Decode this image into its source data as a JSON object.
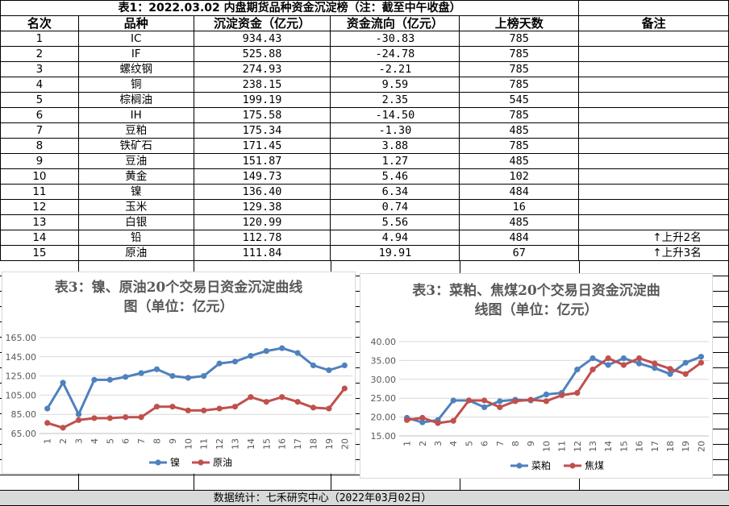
{
  "table": {
    "title": "表1：2022.03.02 内盘期货品种资金沉淀榜（注：截至中午收盘）",
    "headers": [
      "名次",
      "品种",
      "沉淀资金（亿元）",
      "资金流向（亿元）",
      "上榜天数",
      "备注"
    ],
    "rows": [
      {
        "rank": "1",
        "name": "IC",
        "capital": "934.43",
        "flow": "-30.83",
        "days": "785",
        "note": ""
      },
      {
        "rank": "2",
        "name": "IF",
        "capital": "525.88",
        "flow": "-24.78",
        "days": "785",
        "note": ""
      },
      {
        "rank": "3",
        "name": "螺纹钢",
        "capital": "274.93",
        "flow": "-2.21",
        "days": "785",
        "note": ""
      },
      {
        "rank": "4",
        "name": "铜",
        "capital": "238.15",
        "flow": "9.59",
        "days": "785",
        "note": ""
      },
      {
        "rank": "5",
        "name": "棕榈油",
        "capital": "199.19",
        "flow": "2.35",
        "days": "545",
        "note": ""
      },
      {
        "rank": "6",
        "name": "IH",
        "capital": "175.58",
        "flow": "-14.50",
        "days": "785",
        "note": ""
      },
      {
        "rank": "7",
        "name": "豆粕",
        "capital": "175.34",
        "flow": "-1.30",
        "days": "485",
        "note": ""
      },
      {
        "rank": "8",
        "name": "铁矿石",
        "capital": "171.45",
        "flow": "3.88",
        "days": "785",
        "note": ""
      },
      {
        "rank": "9",
        "name": "豆油",
        "capital": "151.87",
        "flow": "1.27",
        "days": "485",
        "note": ""
      },
      {
        "rank": "10",
        "name": "黄金",
        "capital": "149.73",
        "flow": "5.46",
        "days": "102",
        "note": ""
      },
      {
        "rank": "11",
        "name": "镍",
        "capital": "136.40",
        "flow": "6.34",
        "days": "484",
        "note": ""
      },
      {
        "rank": "12",
        "name": "玉米",
        "capital": "129.38",
        "flow": "0.74",
        "days": "16",
        "note": ""
      },
      {
        "rank": "13",
        "name": "白银",
        "capital": "120.99",
        "flow": "5.56",
        "days": "485",
        "note": ""
      },
      {
        "rank": "14",
        "name": "铅",
        "capital": "112.78",
        "flow": "4.94",
        "days": "484",
        "note": "↑上升2名"
      },
      {
        "rank": "15",
        "name": "原油",
        "capital": "111.84",
        "flow": "19.91",
        "days": "67",
        "note": "↑上升3名"
      }
    ]
  },
  "chart_data": [
    {
      "type": "line",
      "title": "表3：镍、原油20个交易日资金沉淀曲线图（单位：亿元）",
      "title_lines": [
        "表3：镍、原油20个交易日资金沉淀曲线",
        "图（单位：亿元）"
      ],
      "categories": [
        "1",
        "2",
        "3",
        "4",
        "5",
        "6",
        "7",
        "8",
        "9",
        "10",
        "11",
        "12",
        "13",
        "14",
        "15",
        "16",
        "17",
        "18",
        "19",
        "20"
      ],
      "ylim": [
        65,
        165
      ],
      "yticks": [
        "65.00",
        "85.00",
        "105.00",
        "125.00",
        "145.00",
        "165.00"
      ],
      "legend_position": "bottom",
      "series": [
        {
          "name": "镍",
          "color": "#4f81bd",
          "values": [
            91,
            118,
            85,
            121,
            121,
            124,
            128,
            132,
            125,
            123,
            125,
            138,
            140,
            146,
            151,
            154,
            149,
            136,
            131,
            136
          ]
        },
        {
          "name": "原油",
          "color": "#c0504d",
          "values": [
            76,
            71,
            79,
            81,
            81,
            82,
            82,
            93,
            93,
            89,
            89,
            91,
            93,
            103,
            98,
            103,
            98,
            92,
            91,
            112
          ]
        }
      ]
    },
    {
      "type": "line",
      "title": "表3：菜粕、焦煤20个交易日资金沉淀曲线图（单位：亿元）",
      "title_lines": [
        "表3：菜粕、焦煤20个交易日资金沉淀曲",
        "线图（单位：亿元）"
      ],
      "categories": [
        "1",
        "2",
        "3",
        "4",
        "5",
        "6",
        "7",
        "8",
        "9",
        "10",
        "11",
        "12",
        "13",
        "14",
        "15",
        "16",
        "17",
        "18",
        "19",
        "20"
      ],
      "ylim": [
        15,
        40
      ],
      "yticks": [
        "15.00",
        "20.00",
        "25.00",
        "30.00",
        "35.00",
        "40.00"
      ],
      "legend_position": "bottom",
      "series": [
        {
          "name": "菜粕",
          "color": "#4f81bd",
          "values": [
            19.8,
            18.6,
            19.2,
            24.4,
            24.4,
            22.6,
            24.2,
            24.6,
            24.4,
            26.0,
            26.4,
            32.6,
            35.6,
            33.8,
            35.6,
            34.2,
            33.0,
            31.4,
            34.4,
            36.0
          ]
        },
        {
          "name": "焦煤",
          "color": "#c0504d",
          "values": [
            19.2,
            19.8,
            18.4,
            19.0,
            24.4,
            24.4,
            22.6,
            24.2,
            24.6,
            24.2,
            25.8,
            26.4,
            32.6,
            35.6,
            33.8,
            35.6,
            34.2,
            32.8,
            31.4,
            34.4
          ]
        }
      ]
    }
  ],
  "footer": {
    "text": "数据统计：七禾研究中心（2022年03月02日）"
  }
}
